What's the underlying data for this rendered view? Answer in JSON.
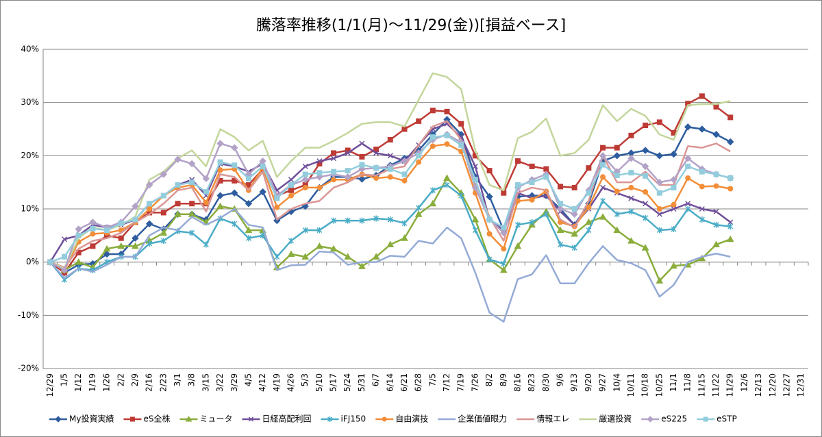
{
  "chart_data": {
    "type": "line",
    "title": "騰落率推移(1/1(月)～11/29(金))[損益ベース]",
    "categories": [
      "12/29",
      "1/5",
      "1/12",
      "1/19",
      "1/26",
      "2/2",
      "2/9",
      "2/16",
      "2/23",
      "3/1",
      "3/8",
      "3/15",
      "3/22",
      "3/29",
      "4/5",
      "4/12",
      "4/19",
      "4/26",
      "5/3",
      "5/10",
      "5/17",
      "5/24",
      "5/31",
      "6/7",
      "6/14",
      "6/21",
      "6/28",
      "7/5",
      "7/12",
      "7/19",
      "7/26",
      "8/2",
      "8/9",
      "8/16",
      "8/23",
      "8/30",
      "9/6",
      "9/13",
      "9/20",
      "9/27",
      "10/4",
      "10/11",
      "10/18",
      "10/25",
      "11/1",
      "11/8",
      "11/15",
      "11/22",
      "11/29",
      "12/6",
      "12/13",
      "12/20",
      "12/27",
      "12/31"
    ],
    "ylim": [
      -20,
      40
    ],
    "yticks": [
      {
        "value": -20,
        "label": "-20%"
      },
      {
        "value": -10,
        "label": "-10%"
      },
      {
        "value": 0,
        "label": "0%"
      },
      {
        "value": 10,
        "label": "10%"
      },
      {
        "value": 20,
        "label": "20%"
      },
      {
        "value": 30,
        "label": "30%"
      },
      {
        "value": 40,
        "label": "40%"
      }
    ],
    "grid": true,
    "legend": "bottom",
    "series": [
      {
        "name": "My投資実績",
        "color": "#2e5d9f",
        "marker": "diamond",
        "values": [
          0,
          -2,
          -0.5,
          -0.3,
          1.5,
          1.5,
          4.5,
          7.2,
          6.2,
          9,
          9,
          8,
          12.5,
          13,
          11,
          13.2,
          7.8,
          9.5,
          10.5,
          14,
          16,
          16,
          15.6,
          16.3,
          18.2,
          19.5,
          21,
          24,
          26.8,
          24,
          16,
          12.3,
          6,
          12.3,
          12.5,
          12.5,
          10,
          7,
          11,
          19,
          20,
          20.5,
          21,
          20,
          20.3,
          25.4,
          25,
          24,
          22.6,
          null,
          null,
          null,
          null,
          null
        ]
      },
      {
        "name": "eS全株",
        "color": "#be3a34",
        "marker": "square",
        "values": [
          0,
          -2,
          1.8,
          3,
          5,
          4.5,
          7.5,
          9.3,
          9.3,
          11,
          11,
          11,
          15.3,
          15.3,
          14.5,
          17.5,
          12.5,
          13.5,
          14.5,
          18.5,
          20.5,
          21,
          19.8,
          21.2,
          23,
          25,
          26.5,
          28.5,
          28.3,
          26,
          20,
          17.2,
          13,
          19,
          18,
          17.5,
          14.2,
          14,
          17.7,
          21.5,
          21.5,
          23.8,
          25.7,
          26.3,
          24.3,
          29.8,
          31.2,
          29.2,
          27.2,
          null,
          null,
          null,
          null,
          null
        ]
      },
      {
        "name": "ミュータ",
        "color": "#8aad3c",
        "marker": "triangle",
        "values": [
          0,
          -1.5,
          0,
          -1,
          2.5,
          3,
          3,
          4,
          5.5,
          9,
          9,
          7.5,
          10.5,
          10,
          6,
          6,
          -1,
          1.5,
          1,
          3,
          2.5,
          1,
          -0.8,
          1,
          3.3,
          4.5,
          9,
          11,
          15.8,
          13,
          8,
          0.5,
          -1.5,
          3,
          7,
          9.5,
          6,
          5.3,
          7.5,
          8.5,
          6,
          4,
          2.7,
          -3.5,
          -0.7,
          -0.5,
          0.7,
          3.3,
          4.3,
          null,
          null,
          null,
          null,
          null
        ]
      },
      {
        "name": "日経高配利回",
        "color": "#6f4f9a",
        "marker": "x",
        "values": [
          0,
          4.3,
          5,
          7,
          6.5,
          7,
          8,
          11,
          12.5,
          14.5,
          15.5,
          12.5,
          18.5,
          18,
          17,
          18.5,
          13.5,
          15.5,
          18,
          19,
          19.5,
          20.5,
          22.3,
          20.5,
          20,
          19,
          22,
          25,
          26,
          23.5,
          18,
          8,
          6,
          13,
          12,
          12.5,
          9.5,
          7,
          10,
          14,
          13,
          12,
          11,
          9,
          10,
          11,
          10,
          9.5,
          7.5,
          null,
          null,
          null,
          null,
          null
        ]
      },
      {
        "name": "iFJ150",
        "color": "#4aacc6",
        "marker": "star",
        "values": [
          0,
          -3.3,
          -1.2,
          -1.5,
          0,
          1,
          1,
          3.5,
          4,
          5.8,
          5.5,
          3.3,
          8.2,
          7.2,
          4.5,
          5,
          1,
          4,
          6,
          6,
          7.8,
          7.8,
          7.8,
          8.2,
          8,
          7.3,
          10.2,
          13.5,
          14.5,
          12.5,
          6,
          0.5,
          -0.3,
          7,
          7.5,
          9,
          3.3,
          2.7,
          6,
          11.5,
          9,
          9.5,
          8.3,
          6,
          6.2,
          10,
          8,
          7,
          6.7,
          null,
          null,
          null,
          null,
          null
        ]
      },
      {
        "name": "自由演技",
        "color": "#f28d38",
        "marker": "circle",
        "values": [
          0,
          -1.5,
          3.8,
          5.3,
          5.5,
          6,
          7.5,
          10,
          12.5,
          14,
          14.5,
          11.2,
          17.3,
          17.5,
          13.5,
          17.8,
          10.3,
          12.5,
          14,
          14,
          15.5,
          15.5,
          16.5,
          15.8,
          16,
          15.3,
          18.8,
          21.8,
          22.2,
          20.8,
          13,
          5.3,
          2.5,
          11.5,
          11.7,
          13.3,
          7.5,
          6.7,
          10.3,
          16,
          13.3,
          14,
          13.2,
          10,
          10.8,
          15.8,
          14.2,
          14.3,
          13.8,
          null,
          null,
          null,
          null,
          null
        ]
      },
      {
        "name": "企業価値眼力",
        "color": "#94aad6",
        "marker": "none",
        "values": [
          0,
          -3,
          -1.2,
          -1.8,
          -0.5,
          1,
          1,
          5,
          6.5,
          6,
          8.5,
          7,
          8.3,
          10,
          7,
          6.5,
          -1.5,
          -0.6,
          -0.5,
          2,
          1.8,
          -0.5,
          0,
          0,
          1.2,
          1,
          4,
          3.5,
          6.5,
          4.5,
          -2,
          -9.5,
          -11.2,
          -3.2,
          -2.3,
          1.3,
          -4,
          -4,
          -0.2,
          3,
          0.4,
          -0.2,
          -1.5,
          -6.5,
          -4.3,
          0,
          1,
          1.6,
          1,
          null,
          null,
          null,
          null,
          null
        ]
      },
      {
        "name": "情報エレ",
        "color": "#da9694",
        "marker": "none",
        "values": [
          0,
          -1,
          2.5,
          4,
          4.5,
          5.5,
          7.5,
          9,
          11,
          13.5,
          14,
          9.5,
          16.5,
          16,
          13.5,
          17,
          8,
          10,
          11,
          11.5,
          14,
          15,
          16.5,
          16.3,
          17.5,
          18,
          22,
          25.5,
          26.5,
          23,
          15,
          8.5,
          4,
          13,
          14,
          13.5,
          8,
          6.5,
          11.5,
          20,
          15,
          15,
          17,
          14.5,
          14.5,
          21.8,
          21.5,
          22.3,
          20.8,
          null,
          null,
          null,
          null,
          null
        ]
      },
      {
        "name": "厳選投資",
        "color": "#c3d69b",
        "marker": "none",
        "values": [
          0,
          -1.2,
          4.5,
          6.5,
          6,
          7,
          8.5,
          15.5,
          17,
          19.5,
          21,
          18,
          25,
          23.5,
          21,
          22.8,
          16,
          19,
          21.5,
          21.5,
          22.8,
          24.3,
          26,
          26.3,
          26.3,
          25.5,
          30.5,
          35.5,
          34.8,
          32.5,
          21,
          14.5,
          13.5,
          23.3,
          24.5,
          27,
          20,
          20.5,
          23,
          29.5,
          26.5,
          28.8,
          27.5,
          24,
          23,
          29.5,
          29.7,
          29.7,
          30.3,
          null,
          null,
          null,
          null,
          null
        ]
      },
      {
        "name": "eS225",
        "color": "#b3a2c7",
        "marker": "diamond",
        "values": [
          0,
          -1.5,
          6.2,
          7.5,
          6.5,
          7.5,
          10.5,
          14.5,
          16.5,
          19.3,
          18.5,
          15.7,
          22.3,
          21.5,
          16.5,
          19,
          12.5,
          14.5,
          15.5,
          16,
          16.5,
          16,
          17.5,
          17.7,
          18,
          19,
          20.5,
          23,
          24,
          22.5,
          14,
          8,
          5.5,
          14,
          15.5,
          16.5,
          10,
          9,
          13.5,
          20,
          17,
          19.5,
          18,
          15,
          15.5,
          19.5,
          17.5,
          16.5,
          15.8,
          null,
          null,
          null,
          null,
          null
        ]
      },
      {
        "name": "eSTP",
        "color": "#93cddd",
        "marker": "square",
        "values": [
          0,
          1,
          5,
          6.3,
          6,
          7.3,
          8,
          11,
          12.5,
          14.5,
          15,
          13.2,
          18.8,
          18.2,
          15.7,
          18,
          12,
          14.5,
          16.5,
          16.8,
          17,
          17.2,
          18.3,
          17.7,
          17.5,
          16.5,
          20,
          23.5,
          23.8,
          22,
          15.5,
          8,
          6.5,
          14.5,
          15,
          16,
          11,
          10,
          13,
          18.3,
          16.3,
          16.8,
          16.2,
          13,
          14,
          18,
          17,
          16.5,
          15.8,
          null,
          null,
          null,
          null,
          null
        ]
      }
    ]
  }
}
